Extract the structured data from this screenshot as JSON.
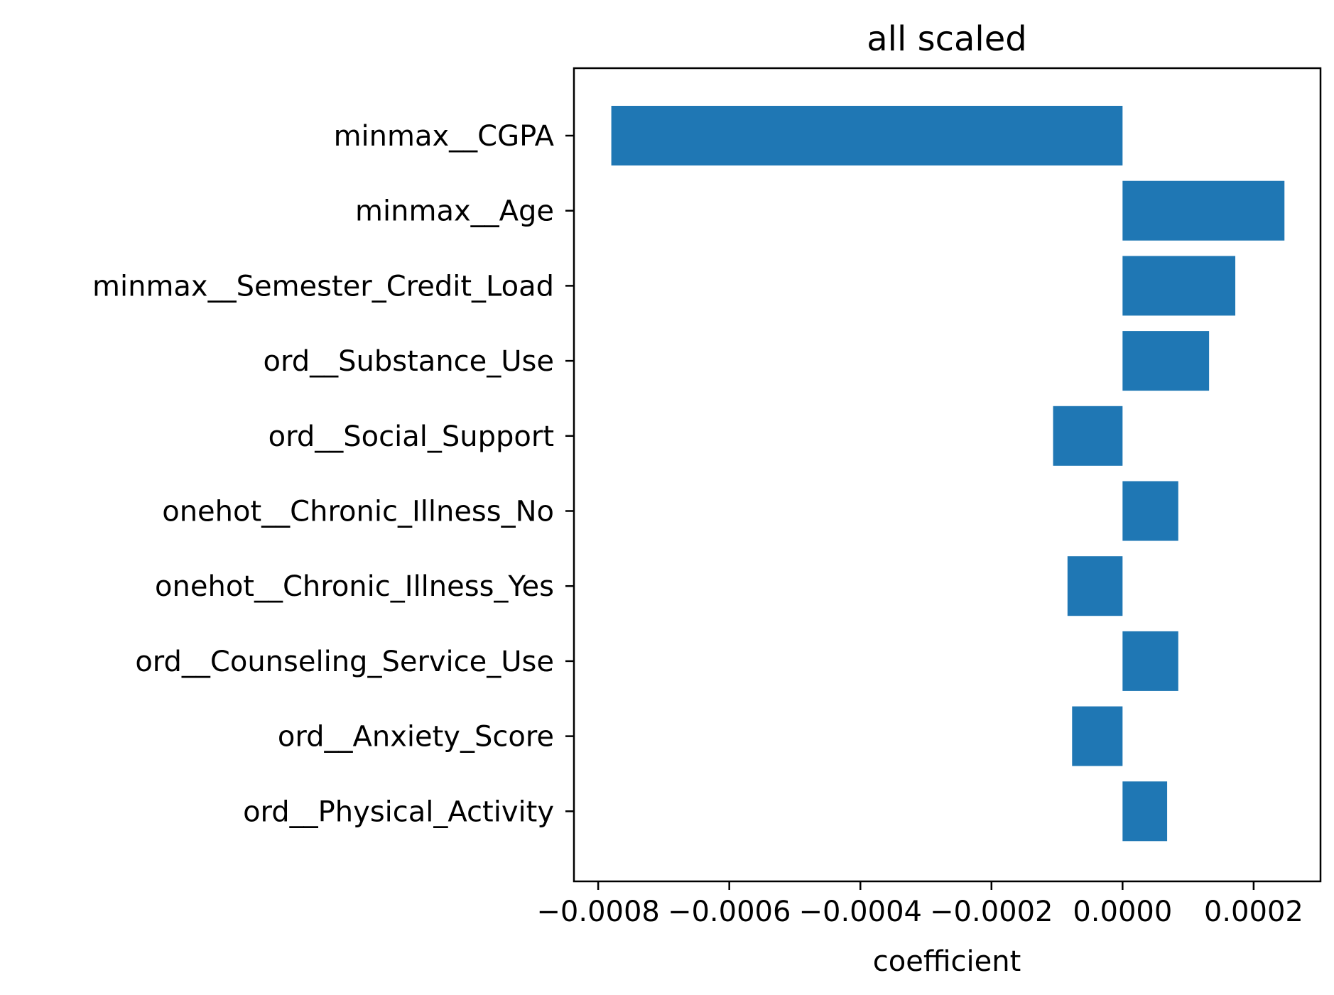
{
  "chart_data": {
    "type": "bar",
    "orientation": "horizontal",
    "title": "all scaled",
    "xlabel": "coefficient",
    "ylabel": "",
    "categories": [
      "minmax__CGPA",
      "minmax__Age",
      "minmax__Semester_Credit_Load",
      "ord__Substance_Use",
      "ord__Social_Support",
      "onehot__Chronic_Illness_No",
      "onehot__Chronic_Illness_Yes",
      "ord__Counseling_Service_Use",
      "ord__Anxiety_Score",
      "ord__Physical_Activity"
    ],
    "values": [
      -0.00078,
      0.000247,
      0.000172,
      0.000132,
      -0.000106,
      8.5e-05,
      -8.4e-05,
      8.5e-05,
      -7.7e-05,
      6.8e-05
    ],
    "xlim": [
      -0.000837,
      0.000302
    ],
    "xticks": [
      -0.0008,
      -0.0006,
      -0.0004,
      -0.0002,
      0.0,
      0.0002
    ],
    "xtick_labels": [
      "−0.0008",
      "−0.0006",
      "−0.0004",
      "−0.0002",
      "0.0000",
      "0.0002"
    ],
    "bar_color": "#1f77b4",
    "grid": false,
    "legend": "none"
  }
}
